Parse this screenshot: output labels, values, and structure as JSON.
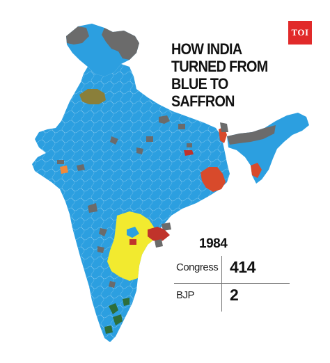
{
  "badge": {
    "text": "TOI",
    "color": "#e12a2a"
  },
  "headline": {
    "lines": [
      "HOW INDIA",
      "TURNED FROM",
      "BLUE TO",
      "SAFFRON"
    ]
  },
  "year": "1984",
  "results": [
    {
      "party": "Congress",
      "seats": "414"
    },
    {
      "party": "BJP",
      "seats": "2"
    }
  ],
  "colors": {
    "congress": "#2c9fe0",
    "other": "#6b6b6b",
    "tdp": "#f2ea2f",
    "left": "#d84a2b",
    "dmk": "#2d6e3a",
    "saffron": "#f08a3c",
    "cpi": "#c0332b",
    "misc": "#8a7f3a"
  }
}
